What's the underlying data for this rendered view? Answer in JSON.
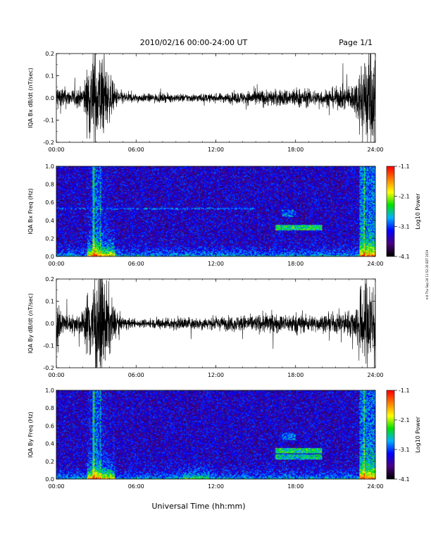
{
  "header": {
    "title": "2010/02/16  00:00-24:00 UT",
    "page": "Page 1/1"
  },
  "side_note": "mit Thu Sep 26 11:52:30 EDT 2019",
  "footer": {
    "xlabel": "Universal Time (hh:mm)"
  },
  "colors": {
    "trace": "#000000",
    "colormap": [
      "#000000",
      "#4b0082",
      "#0000ff",
      "#00b0ff",
      "#00e000",
      "#ffff00",
      "#ff8000",
      "#ff0000"
    ]
  },
  "chart_data": [
    {
      "type": "line",
      "ylabel": "IQA Bx dB/dt (nT/sec)",
      "xlim": [
        0,
        24
      ],
      "ylim": [
        -0.2,
        0.2
      ],
      "yticks": [
        "0.2",
        "0.1",
        "0.0",
        "-0.1",
        "-0.2"
      ],
      "xticks": [
        "00:00",
        "06:00",
        "12:00",
        "18:00",
        "24:00"
      ],
      "envelope": {
        "hours": [
          0,
          1,
          2,
          2.5,
          3,
          3.5,
          4,
          4.5,
          5,
          6,
          7,
          8,
          10,
          12,
          14,
          15,
          16,
          17,
          18,
          19,
          20,
          21,
          22,
          22.5,
          23,
          23.5,
          24
        ],
        "amplitude": [
          0.07,
          0.04,
          0.05,
          0.2,
          0.25,
          0.2,
          0.11,
          0.05,
          0.03,
          0.02,
          0.02,
          0.02,
          0.02,
          0.02,
          0.03,
          0.04,
          0.04,
          0.04,
          0.05,
          0.04,
          0.04,
          0.05,
          0.06,
          0.08,
          0.2,
          0.25,
          0.25
        ]
      }
    },
    {
      "type": "heatmap",
      "ylabel": "IQA Bx Freq (Hz)",
      "colorbar_label": "Log10 Power",
      "colorbar_ticks": [
        "-1.1",
        "-2.1",
        "-3.1",
        "-4.1"
      ],
      "xlim": [
        0,
        24
      ],
      "ylim": [
        0,
        1.0
      ],
      "yticks": [
        "1.0",
        "0.8",
        "0.6",
        "0.4",
        "0.2",
        "0.0"
      ],
      "xticks": [
        "00:00",
        "06:00",
        "12:00",
        "18:00",
        "24:00"
      ],
      "zlim": [
        -4.1,
        -1.1
      ]
    },
    {
      "type": "line",
      "ylabel": "IQA By dB/dt (nT/sec)",
      "xlim": [
        0,
        24
      ],
      "ylim": [
        -0.2,
        0.2
      ],
      "yticks": [
        "0.2",
        "0.1",
        "0.0",
        "-0.1",
        "-0.2"
      ],
      "xticks": [
        "00:00",
        "06:00",
        "12:00",
        "18:00",
        "24:00"
      ],
      "envelope": {
        "hours": [
          0,
          0.5,
          1,
          2,
          2.5,
          3,
          3.5,
          4,
          4.5,
          5,
          6,
          7,
          8,
          10,
          12,
          14,
          15,
          16,
          17,
          18,
          19,
          20,
          21,
          22,
          22.5,
          23,
          23.5,
          24
        ],
        "amplitude": [
          0.15,
          0.05,
          0.04,
          0.06,
          0.2,
          0.25,
          0.25,
          0.15,
          0.06,
          0.03,
          0.02,
          0.02,
          0.03,
          0.03,
          0.03,
          0.04,
          0.04,
          0.05,
          0.04,
          0.05,
          0.04,
          0.04,
          0.05,
          0.06,
          0.08,
          0.2,
          0.25,
          0.25
        ]
      }
    },
    {
      "type": "heatmap",
      "ylabel": "IQA By Freq (Hz)",
      "colorbar_label": "Log10 Power",
      "colorbar_ticks": [
        "-1.1",
        "-2.1",
        "-3.1",
        "-4.1"
      ],
      "xlim": [
        0,
        24
      ],
      "ylim": [
        0,
        1.0
      ],
      "yticks": [
        "1.0",
        "0.8",
        "0.6",
        "0.4",
        "0.2",
        "0.0"
      ],
      "xticks": [
        "00:00",
        "06:00",
        "12:00",
        "18:00",
        "24:00"
      ],
      "zlim": [
        -4.1,
        -1.1
      ]
    }
  ]
}
